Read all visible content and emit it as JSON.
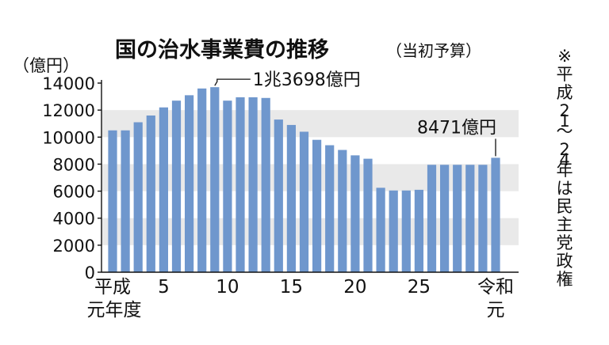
{
  "chart_data": {
    "type": "bar",
    "title": "国の治水事業費の推移",
    "subtitle": "（当初予算）",
    "ylabel": "（億円）",
    "ylim": [
      0,
      14000
    ],
    "yticks": [
      0,
      2000,
      4000,
      6000,
      8000,
      10000,
      12000,
      14000
    ],
    "values": [
      10500,
      10500,
      11100,
      11600,
      12200,
      12700,
      13100,
      13600,
      13698,
      12700,
      12950,
      12950,
      12900,
      11300,
      10900,
      10400,
      9800,
      9400,
      9050,
      8650,
      8400,
      6250,
      6050,
      6050,
      6100,
      7950,
      7950,
      7950,
      7950,
      7950,
      8471
    ],
    "x_labels": [
      {
        "index": 0,
        "lines": [
          "平成",
          "元年度"
        ]
      },
      {
        "index": 4,
        "lines": [
          "5"
        ]
      },
      {
        "index": 9,
        "lines": [
          "10"
        ]
      },
      {
        "index": 14,
        "lines": [
          "15"
        ]
      },
      {
        "index": 19,
        "lines": [
          "20"
        ]
      },
      {
        "index": 24,
        "lines": [
          "25"
        ]
      },
      {
        "index": 30,
        "lines": [
          "令和",
          "元"
        ]
      }
    ],
    "annotations": [
      {
        "index": 8,
        "text": "1兆3698億円"
      },
      {
        "index": 30,
        "text": "8471億円"
      }
    ],
    "shaded_bands": [
      [
        2000,
        4000
      ],
      [
        6000,
        8000
      ],
      [
        10000,
        12000
      ]
    ],
    "side_note": "※平成21〜24年は民主党政権",
    "bar_color": "#6f97cd",
    "band_color": "#e9e9e9"
  }
}
